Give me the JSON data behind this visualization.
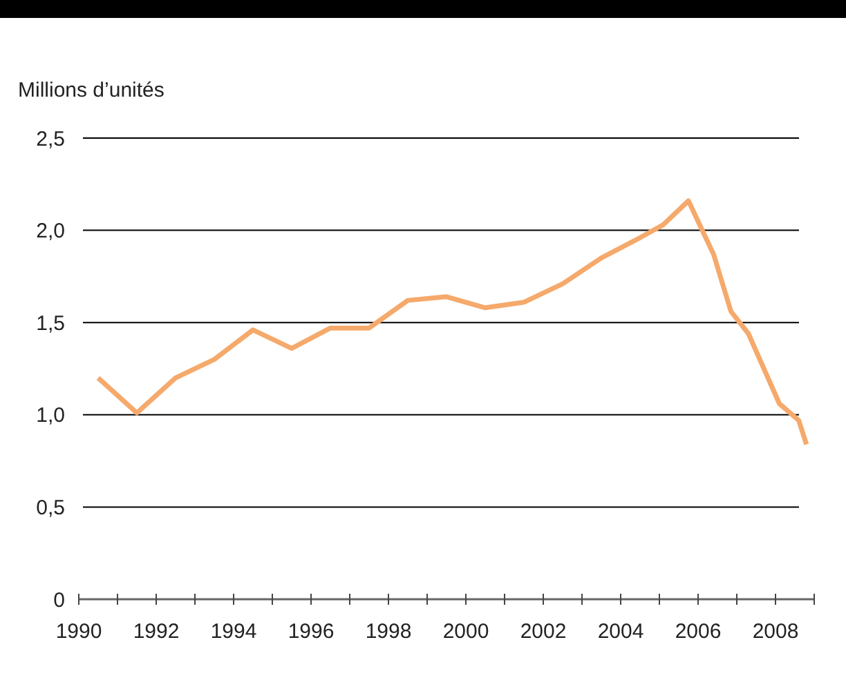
{
  "chart_data": {
    "type": "line",
    "ylabel": "Millions d’unités",
    "x": [
      1990.5,
      1991.5,
      1992.5,
      1993.5,
      1994.5,
      1995.5,
      1996.5,
      1997.5,
      1998.5,
      1999.5,
      2000.5,
      2001.5,
      2002.5,
      2003.5,
      2004.5,
      2005.1,
      2005.75,
      2006.4,
      2006.85,
      2007.3,
      2008.1,
      2008.6,
      2008.8
    ],
    "series": [
      {
        "color": "#f5a96b",
        "values": [
          1.2,
          1.01,
          1.2,
          1.3,
          1.46,
          1.36,
          1.47,
          1.47,
          1.62,
          1.64,
          1.58,
          1.61,
          1.71,
          1.85,
          1.96,
          2.03,
          2.16,
          1.87,
          1.56,
          1.44,
          1.06,
          0.97,
          0.84
        ]
      }
    ],
    "xlim": [
      1990,
      2009
    ],
    "xticks": [
      1990,
      {
        "value": 1991,
        "label": null
      },
      1992,
      {
        "value": 1993,
        "label": null
      },
      1994,
      {
        "value": 1995,
        "label": null
      },
      1996,
      {
        "value": 1997,
        "label": null
      },
      1998,
      {
        "value": 1999,
        "label": null
      },
      2000,
      {
        "value": 2001,
        "label": null
      },
      2002,
      {
        "value": 2003,
        "label": null
      },
      2004,
      {
        "value": 2005,
        "label": null
      },
      2006,
      {
        "value": 2007,
        "label": null
      },
      2008,
      {
        "value": 2009,
        "label": null
      }
    ],
    "ylim": [
      0,
      2.5
    ],
    "yticks": [
      {
        "value": 0,
        "label": "0"
      },
      {
        "value": 0.5,
        "label": "0,5"
      },
      {
        "value": 1,
        "label": "1,0"
      },
      {
        "value": 1.5,
        "label": "1,5"
      },
      {
        "value": 2,
        "label": "2,0"
      },
      {
        "value": 2.5,
        "label": "2,5"
      }
    ],
    "grid": "y",
    "line_style": "solid",
    "marker": "none"
  }
}
